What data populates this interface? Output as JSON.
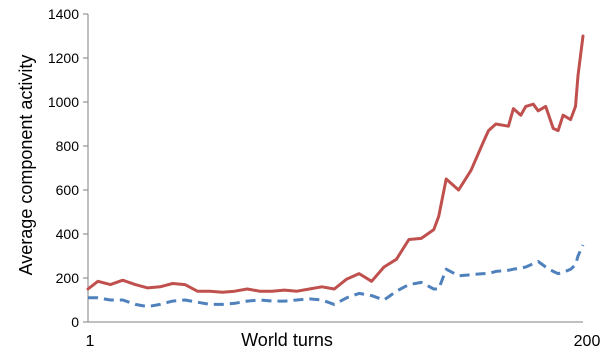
{
  "chart_data": {
    "type": "line",
    "title": "",
    "xlabel": "World turns",
    "ylabel": "Average component activity",
    "xlim": [
      1,
      200
    ],
    "ylim": [
      0,
      1400
    ],
    "x_tick_labels": [
      "1",
      "200"
    ],
    "y_ticks": [
      0,
      200,
      400,
      600,
      800,
      1000,
      1200,
      1400
    ],
    "grid": false,
    "legend": "none",
    "x": [
      1,
      5,
      10,
      15,
      20,
      25,
      30,
      35,
      40,
      45,
      50,
      55,
      60,
      65,
      70,
      75,
      80,
      85,
      90,
      95,
      100,
      105,
      110,
      115,
      120,
      125,
      130,
      135,
      140,
      142,
      145,
      150,
      155,
      160,
      162,
      165,
      170,
      172,
      175,
      177,
      180,
      182,
      185,
      188,
      190,
      192,
      195,
      197,
      198,
      200
    ],
    "series": [
      {
        "style": "solid",
        "color": "#c0504d",
        "values": [
          150,
          185,
          170,
          190,
          170,
          155,
          160,
          175,
          170,
          140,
          140,
          135,
          140,
          150,
          140,
          140,
          145,
          140,
          150,
          160,
          150,
          195,
          220,
          185,
          250,
          285,
          375,
          380,
          420,
          480,
          650,
          600,
          690,
          820,
          870,
          900,
          890,
          970,
          940,
          980,
          990,
          960,
          980,
          880,
          870,
          940,
          920,
          980,
          1120,
          1300
        ]
      },
      {
        "style": "dashed",
        "color": "#4f81bd",
        "values": [
          110,
          110,
          100,
          100,
          80,
          70,
          80,
          95,
          100,
          90,
          80,
          80,
          85,
          95,
          100,
          95,
          95,
          100,
          105,
          100,
          80,
          110,
          130,
          120,
          100,
          140,
          170,
          180,
          150,
          150,
          240,
          210,
          215,
          220,
          220,
          230,
          235,
          240,
          245,
          250,
          265,
          275,
          250,
          230,
          220,
          225,
          240,
          260,
          300,
          350
        ]
      }
    ]
  }
}
